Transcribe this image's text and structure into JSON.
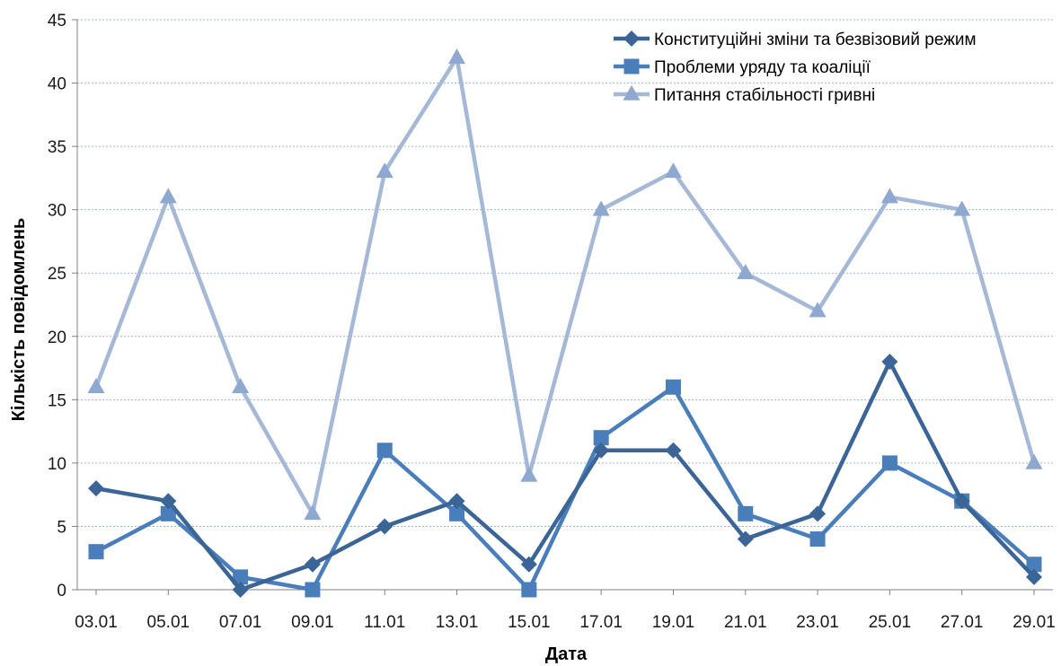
{
  "chart_data": {
    "type": "line",
    "title": "",
    "xlabel": "Дата",
    "ylabel": "Кількість повідомлень",
    "ylim": [
      0,
      45
    ],
    "yticks": [
      0,
      5,
      10,
      15,
      20,
      25,
      30,
      35,
      40,
      45
    ],
    "grid": "horizontal dashed",
    "legend_position": "top-right",
    "categories": [
      "03.01",
      "05.01",
      "07.01",
      "09.01",
      "11.01",
      "13.01",
      "15.01",
      "17.01",
      "19.01",
      "21.01",
      "23.01",
      "25.01",
      "27.01",
      "29.01"
    ],
    "series": [
      {
        "name": "Конституційні зміни та безвізовий режим",
        "marker": "diamond",
        "color": "#3B6497",
        "values": [
          8,
          7,
          0,
          2,
          5,
          7,
          2,
          11,
          11,
          4,
          6,
          18,
          7,
          1
        ]
      },
      {
        "name": "Проблеми уряду та коаліції",
        "marker": "square",
        "color": "#4A7EBB",
        "values": [
          3,
          6,
          1,
          0,
          11,
          6,
          0,
          12,
          16,
          6,
          4,
          10,
          7,
          2
        ]
      },
      {
        "name": "Питання стабільності гривні",
        "marker": "triangle",
        "color": "#A5B9D6",
        "marker_color": "#8FA8CF",
        "values": [
          16,
          31,
          16,
          6,
          33,
          42,
          9,
          30,
          33,
          25,
          22,
          31,
          30,
          10
        ]
      }
    ]
  }
}
